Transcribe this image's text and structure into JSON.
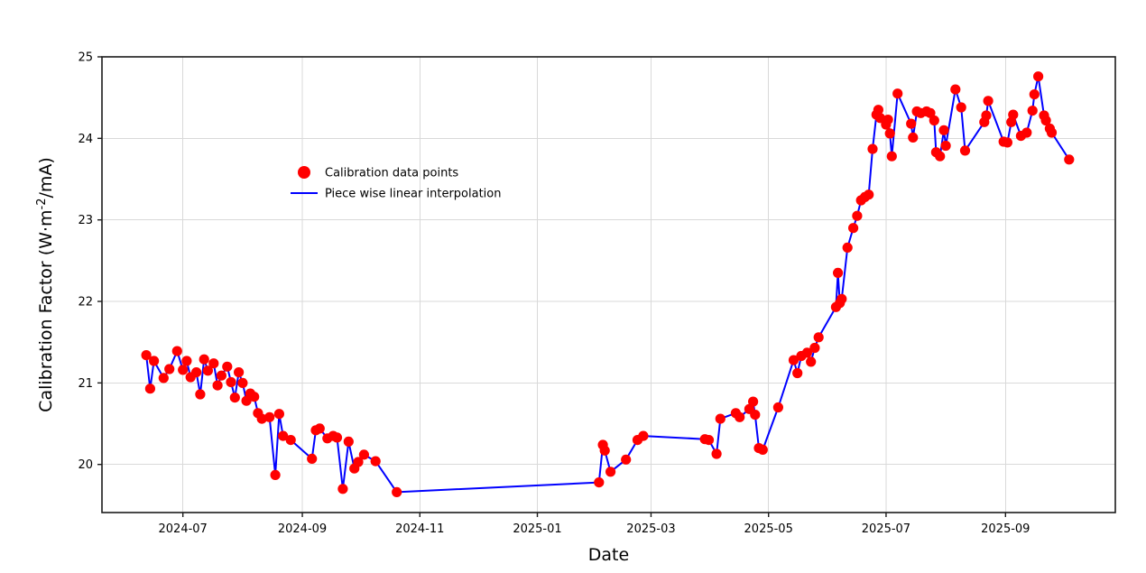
{
  "chart_data": {
    "type": "scatter",
    "title": "",
    "xlabel": "Date",
    "ylabel": "Calibration Factor (W·m⁻²/mA)",
    "ylabel_parts": {
      "pre": "Calibration Factor (W·m",
      "sup": "-2",
      "post": "/mA)"
    },
    "x_ticks": [
      {
        "label": "2024-07",
        "date": "2024-07-01"
      },
      {
        "label": "2024-09",
        "date": "2024-09-01"
      },
      {
        "label": "2024-11",
        "date": "2024-11-01"
      },
      {
        "label": "2025-01",
        "date": "2025-01-01"
      },
      {
        "label": "2025-03",
        "date": "2025-03-01"
      },
      {
        "label": "2025-05",
        "date": "2025-05-01"
      },
      {
        "label": "2025-07",
        "date": "2025-07-01"
      },
      {
        "label": "2025-09",
        "date": "2025-09-01"
      }
    ],
    "y_ticks": [
      {
        "label": "20",
        "value": 20
      },
      {
        "label": "21",
        "value": 21
      },
      {
        "label": "22",
        "value": 22
      },
      {
        "label": "23",
        "value": 23
      },
      {
        "label": "24",
        "value": 24
      },
      {
        "label": "25",
        "value": 25
      }
    ],
    "xlim": [
      "2024-05-20",
      "2025-10-28"
    ],
    "ylim": [
      19.41,
      25.0
    ],
    "grid": true,
    "legend": {
      "position": "upper-left-inside",
      "frame": false,
      "entries": [
        {
          "label": "Calibration data points",
          "type": "marker",
          "color": "#ff0000"
        },
        {
          "label": "Piece wise linear interpolation",
          "type": "line",
          "color": "#0000ff"
        }
      ]
    },
    "colors": {
      "points": "#ff0000",
      "line": "#0000ff",
      "grid": "#d9d9d9",
      "spine": "#1c1c1c",
      "background": "#ffffff"
    },
    "series": [
      {
        "name": "Calibration data points",
        "points": [
          [
            "2024-06-12",
            21.34
          ],
          [
            "2024-06-14",
            20.93
          ],
          [
            "2024-06-16",
            21.27
          ],
          [
            "2024-06-21",
            21.06
          ],
          [
            "2024-06-24",
            21.17
          ],
          [
            "2024-06-28",
            21.39
          ],
          [
            "2024-07-01",
            21.16
          ],
          [
            "2024-07-03",
            21.27
          ],
          [
            "2024-07-05",
            21.07
          ],
          [
            "2024-07-08",
            21.13
          ],
          [
            "2024-07-10",
            20.86
          ],
          [
            "2024-07-12",
            21.29
          ],
          [
            "2024-07-14",
            21.15
          ],
          [
            "2024-07-17",
            21.24
          ],
          [
            "2024-07-19",
            20.97
          ],
          [
            "2024-07-21",
            21.09
          ],
          [
            "2024-07-24",
            21.2
          ],
          [
            "2024-07-26",
            21.01
          ],
          [
            "2024-07-28",
            20.82
          ],
          [
            "2024-07-30",
            21.13
          ],
          [
            "2024-08-01",
            21.0
          ],
          [
            "2024-08-03",
            20.78
          ],
          [
            "2024-08-05",
            20.87
          ],
          [
            "2024-08-07",
            20.83
          ],
          [
            "2024-08-09",
            20.63
          ],
          [
            "2024-08-11",
            20.56
          ],
          [
            "2024-08-15",
            20.58
          ],
          [
            "2024-08-18",
            19.87
          ],
          [
            "2024-08-20",
            20.62
          ],
          [
            "2024-08-22",
            20.35
          ],
          [
            "2024-08-26",
            20.3
          ],
          [
            "2024-09-06",
            20.07
          ],
          [
            "2024-09-08",
            20.42
          ],
          [
            "2024-09-10",
            20.44
          ],
          [
            "2024-09-14",
            20.32
          ],
          [
            "2024-09-17",
            20.35
          ],
          [
            "2024-09-19",
            20.33
          ],
          [
            "2024-09-22",
            19.7
          ],
          [
            "2024-09-25",
            20.28
          ],
          [
            "2024-09-28",
            19.95
          ],
          [
            "2024-09-30",
            20.03
          ],
          [
            "2024-10-03",
            20.12
          ],
          [
            "2024-10-09",
            20.04
          ],
          [
            "2024-10-20",
            19.66
          ],
          [
            "2025-02-02",
            19.78
          ],
          [
            "2025-02-04",
            20.24
          ],
          [
            "2025-02-05",
            20.17
          ],
          [
            "2025-02-08",
            19.91
          ],
          [
            "2025-02-16",
            20.06
          ],
          [
            "2025-02-22",
            20.3
          ],
          [
            "2025-02-25",
            20.35
          ],
          [
            "2025-03-29",
            20.31
          ],
          [
            "2025-03-31",
            20.3
          ],
          [
            "2025-04-04",
            20.13
          ],
          [
            "2025-04-06",
            20.56
          ],
          [
            "2025-04-14",
            20.63
          ],
          [
            "2025-04-16",
            20.58
          ],
          [
            "2025-04-21",
            20.68
          ],
          [
            "2025-04-23",
            20.77
          ],
          [
            "2025-04-24",
            20.61
          ],
          [
            "2025-04-26",
            20.2
          ],
          [
            "2025-04-28",
            20.18
          ],
          [
            "2025-05-06",
            20.7
          ],
          [
            "2025-05-14",
            21.28
          ],
          [
            "2025-05-16",
            21.12
          ],
          [
            "2025-05-18",
            21.33
          ],
          [
            "2025-05-21",
            21.37
          ],
          [
            "2025-05-23",
            21.26
          ],
          [
            "2025-05-25",
            21.43
          ],
          [
            "2025-05-27",
            21.56
          ],
          [
            "2025-06-05",
            21.93
          ],
          [
            "2025-06-06",
            22.35
          ],
          [
            "2025-06-07",
            21.98
          ],
          [
            "2025-06-08",
            22.03
          ],
          [
            "2025-06-11",
            22.66
          ],
          [
            "2025-06-14",
            22.9
          ],
          [
            "2025-06-16",
            23.05
          ],
          [
            "2025-06-18",
            23.24
          ],
          [
            "2025-06-20",
            23.28
          ],
          [
            "2025-06-22",
            23.31
          ],
          [
            "2025-06-24",
            23.87
          ],
          [
            "2025-06-26",
            24.29
          ],
          [
            "2025-06-27",
            24.35
          ],
          [
            "2025-06-28",
            24.25
          ],
          [
            "2025-07-01",
            24.17
          ],
          [
            "2025-07-02",
            24.23
          ],
          [
            "2025-07-03",
            24.06
          ],
          [
            "2025-07-04",
            23.78
          ],
          [
            "2025-07-07",
            24.55
          ],
          [
            "2025-07-14",
            24.18
          ],
          [
            "2025-07-15",
            24.01
          ],
          [
            "2025-07-17",
            24.33
          ],
          [
            "2025-07-19",
            24.31
          ],
          [
            "2025-07-22",
            24.33
          ],
          [
            "2025-07-24",
            24.31
          ],
          [
            "2025-07-26",
            24.22
          ],
          [
            "2025-07-27",
            23.83
          ],
          [
            "2025-07-29",
            23.78
          ],
          [
            "2025-07-31",
            24.1
          ],
          [
            "2025-08-01",
            23.91
          ],
          [
            "2025-08-06",
            24.6
          ],
          [
            "2025-08-09",
            24.38
          ],
          [
            "2025-08-11",
            23.85
          ],
          [
            "2025-08-21",
            24.2
          ],
          [
            "2025-08-22",
            24.28
          ],
          [
            "2025-08-23",
            24.46
          ],
          [
            "2025-08-31",
            23.96
          ],
          [
            "2025-09-02",
            23.95
          ],
          [
            "2025-09-04",
            24.2
          ],
          [
            "2025-09-05",
            24.29
          ],
          [
            "2025-09-09",
            24.03
          ],
          [
            "2025-09-12",
            24.07
          ],
          [
            "2025-09-15",
            24.34
          ],
          [
            "2025-09-16",
            24.54
          ],
          [
            "2025-09-18",
            24.76
          ],
          [
            "2025-09-21",
            24.28
          ],
          [
            "2025-09-22",
            24.22
          ],
          [
            "2025-09-24",
            24.12
          ],
          [
            "2025-09-25",
            24.07
          ],
          [
            "2025-10-04",
            23.74
          ]
        ]
      }
    ]
  }
}
